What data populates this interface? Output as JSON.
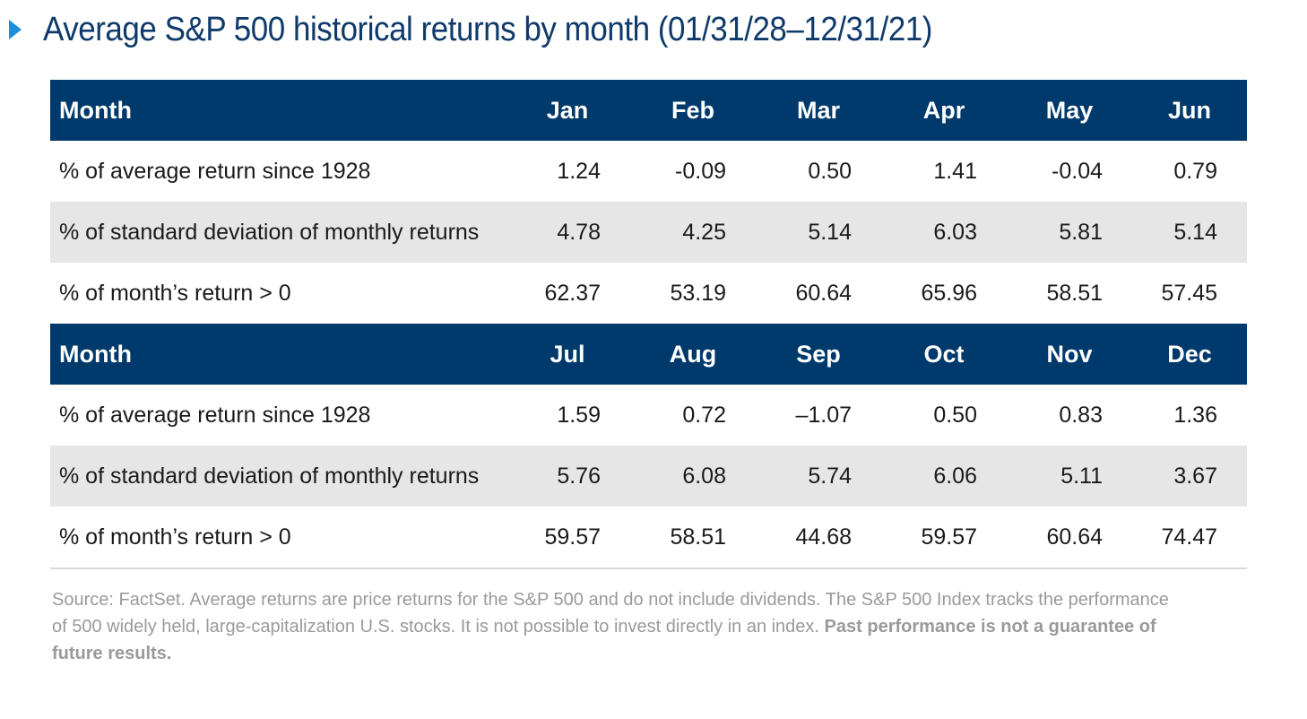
{
  "page_title": "Average S&P 500 historical returns by month (01/31/28–12/31/21)",
  "colors": {
    "header_bg": "#003a6c",
    "title": "#0f3a6a",
    "marker": "#1c8fd6",
    "shaded_row": "#e6e6e6",
    "source_text": "#9a9a9a"
  },
  "chart_data": {
    "type": "table",
    "title": "Average S&P 500 historical returns by month (01/31/28–12/31/21)",
    "header_label": "Month",
    "row_labels": [
      "% of average return since 1928",
      "% of standard deviation of monthly returns",
      "% of month’s return > 0"
    ],
    "blocks": [
      {
        "months": [
          "Jan",
          "Feb",
          "Mar",
          "Apr",
          "May",
          "Jun"
        ],
        "rows": [
          [
            "1.24",
            "-0.09",
            "0.50",
            "1.41",
            "-0.04",
            "0.79"
          ],
          [
            "4.78",
            "4.25",
            "5.14",
            "6.03",
            "5.81",
            "5.14"
          ],
          [
            "62.37",
            "53.19",
            "60.64",
            "65.96",
            "58.51",
            "57.45"
          ]
        ]
      },
      {
        "months": [
          "Jul",
          "Aug",
          "Sep",
          "Oct",
          "Nov",
          "Dec"
        ],
        "rows": [
          [
            "1.59",
            "0.72",
            "–1.07",
            "0.50",
            "0.83",
            "1.36"
          ],
          [
            "5.76",
            "6.08",
            "5.74",
            "6.06",
            "5.11",
            "3.67"
          ],
          [
            "59.57",
            "58.51",
            "44.68",
            "59.57",
            "60.64",
            "74.47"
          ]
        ]
      }
    ]
  },
  "source": {
    "text": "Source: FactSet. Average returns are price returns for the S&P 500 and do not include dividends. The S&P 500 Index tracks the performance of 500 widely held, large-capitalization U.S. stocks. It is not possible to invest directly in an index. ",
    "bold_text": "Past performance is not a guarantee of future results."
  }
}
